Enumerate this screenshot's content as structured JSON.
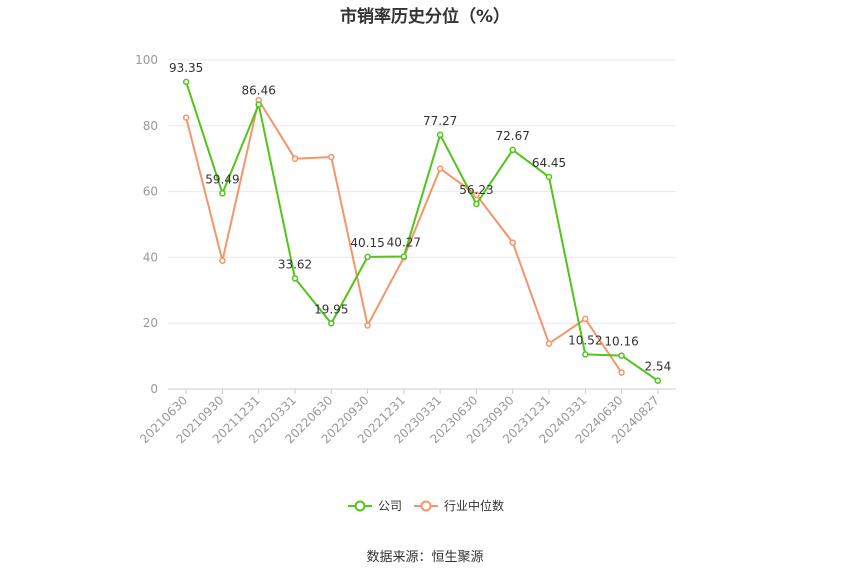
{
  "chart_data": {
    "type": "line",
    "title": "市销率历史分位（%）",
    "xlabel": "",
    "ylabel": "",
    "ylim": [
      0,
      100
    ],
    "yticks": [
      0,
      20,
      40,
      60,
      80,
      100
    ],
    "grid": true,
    "legend_position": "bottom",
    "categories": [
      "20210630",
      "20210930",
      "20211231",
      "20220331",
      "20220630",
      "20220930",
      "20221231",
      "20230331",
      "20230630",
      "20230930",
      "20231231",
      "20240331",
      "20240630",
      "20240827"
    ],
    "series": [
      {
        "name": "公司",
        "color": "#52c41a",
        "labeled": true,
        "values": [
          93.35,
          59.49,
          86.46,
          33.62,
          19.95,
          40.15,
          40.27,
          77.27,
          56.23,
          72.67,
          64.45,
          10.52,
          10.16,
          2.54
        ]
      },
      {
        "name": "行业中位数",
        "color": "#f4956a",
        "labeled": false,
        "values": [
          82.5,
          39.0,
          87.8,
          70.0,
          70.5,
          19.3,
          40.0,
          67.0,
          59.0,
          44.5,
          13.8,
          21.3,
          5.0,
          null
        ]
      }
    ]
  },
  "source_text": "数据来源：恒生聚源"
}
